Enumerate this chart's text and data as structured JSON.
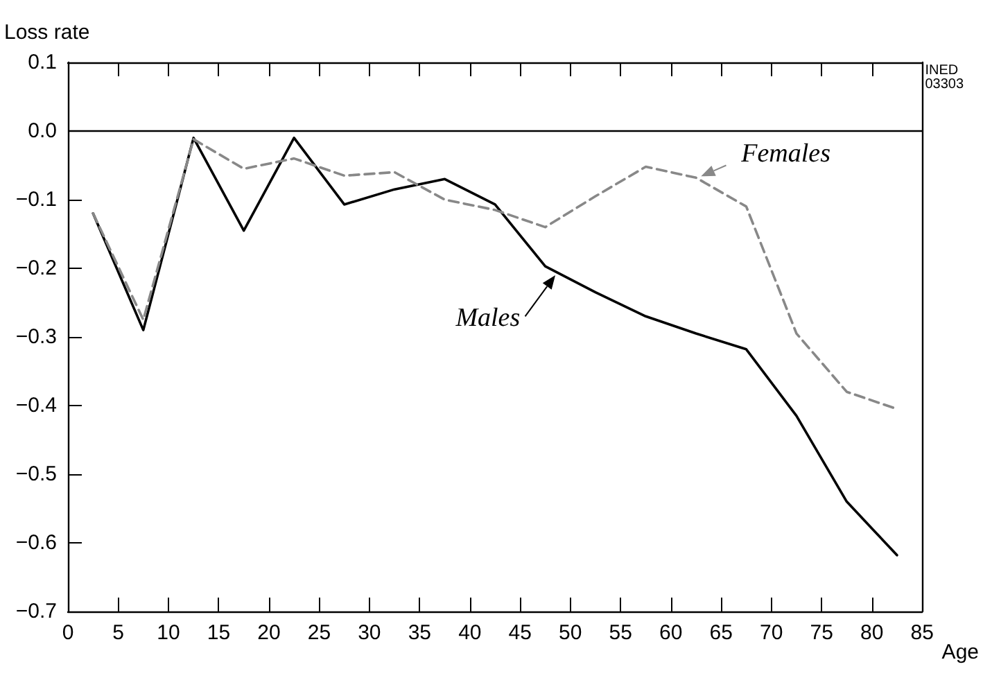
{
  "chart_data": {
    "type": "line",
    "xlabel": "Age",
    "ylabel": "Loss rate",
    "x": [
      2.5,
      7.5,
      12.5,
      17.5,
      22.5,
      27.5,
      32.5,
      37.5,
      42.5,
      47.5,
      52.5,
      57.5,
      62.5,
      67.5,
      72.5,
      77.5,
      82.5
    ],
    "series": [
      {
        "name": "Males",
        "color": "#000000",
        "line_style": "solid",
        "values": [
          -0.12,
          -0.29,
          -0.01,
          -0.145,
          -0.01,
          -0.107,
          -0.085,
          -0.07,
          -0.107,
          -0.197,
          -0.235,
          -0.27,
          -0.295,
          -0.318,
          -0.415,
          -0.54,
          -0.618
        ]
      },
      {
        "name": "Females",
        "color": "#888888",
        "line_style": "dashed",
        "values": [
          -0.12,
          -0.275,
          -0.012,
          -0.055,
          -0.04,
          -0.065,
          -0.06,
          -0.1,
          -0.115,
          -0.14,
          -0.095,
          -0.052,
          -0.068,
          -0.11,
          -0.295,
          -0.38,
          -0.405
        ]
      }
    ],
    "xlim": [
      0,
      85
    ],
    "xticks": [
      0,
      5,
      10,
      15,
      20,
      25,
      30,
      35,
      40,
      45,
      50,
      55,
      60,
      65,
      70,
      75,
      80,
      85
    ],
    "ylim": [
      -0.7,
      0.1
    ],
    "yticks": [
      {
        "value": -0.7,
        "label": "−0.7"
      },
      {
        "value": -0.6,
        "label": "−0.6"
      },
      {
        "value": -0.5,
        "label": "−0.5"
      },
      {
        "value": -0.4,
        "label": "−0.4"
      },
      {
        "value": -0.3,
        "label": "−0.3"
      },
      {
        "value": -0.2,
        "label": "−0.2"
      },
      {
        "value": -0.1,
        "label": "−0.1"
      },
      {
        "value": 0,
        "label": "0.0"
      },
      {
        "value": 0.1,
        "label": "0.1"
      }
    ],
    "ref_lines": [
      {
        "axis": "y",
        "value": 0,
        "color": "#000000",
        "line_style": "solid"
      }
    ],
    "annotations": [
      "INED\n03303"
    ],
    "grid": false,
    "marker": "none"
  }
}
